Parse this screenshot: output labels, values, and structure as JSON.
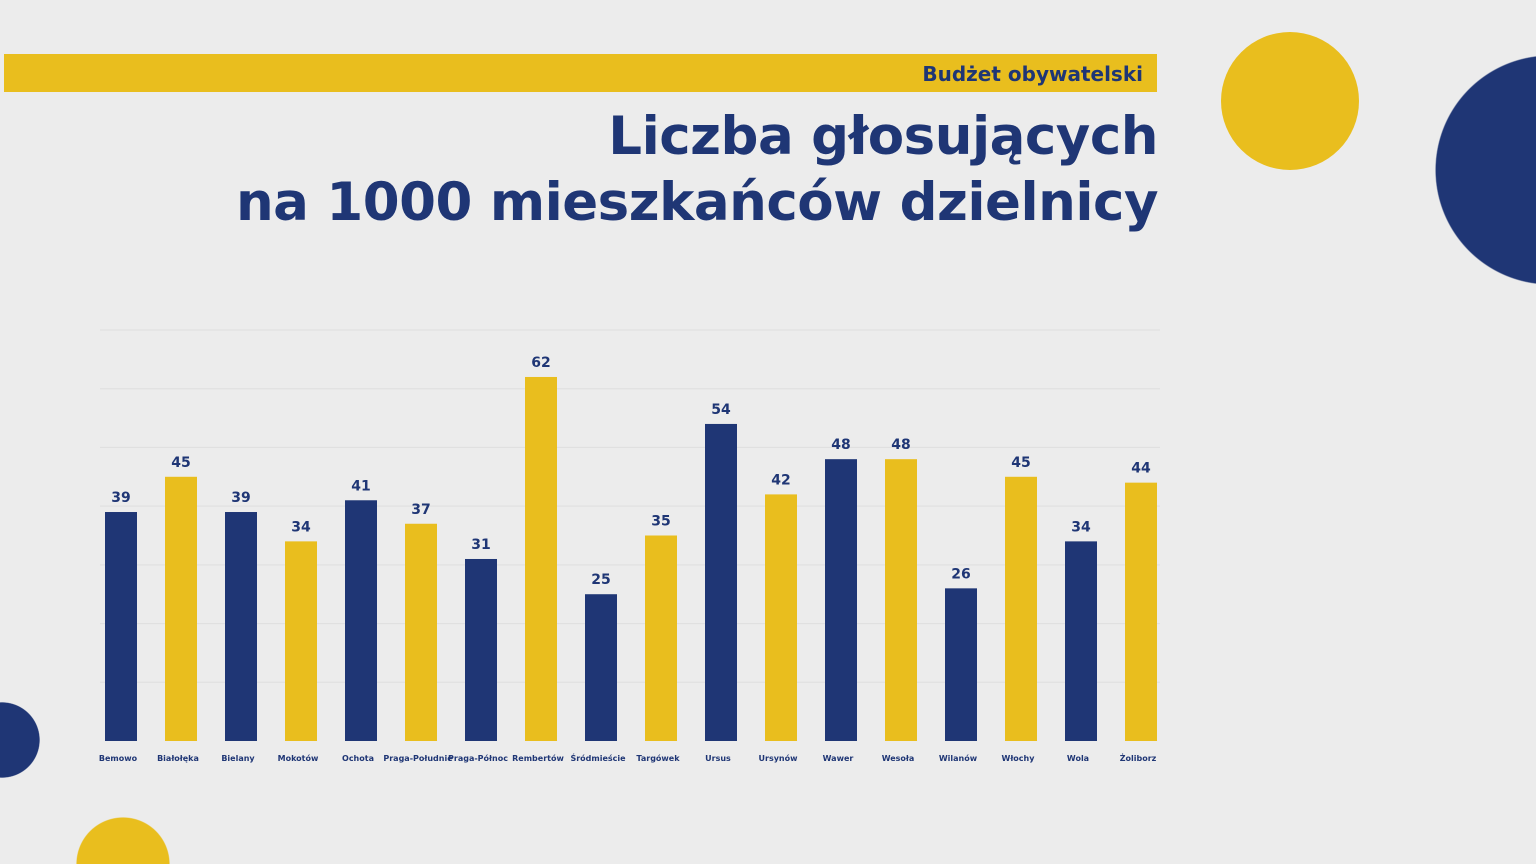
{
  "header": {
    "tag": "Budżet obywatelski",
    "title_line1": "Liczba głosujących",
    "title_line2": "na 1000 mieszkańców dzielnicy"
  },
  "colors": {
    "navy": "#1f3675",
    "yellow": "#e9be1e",
    "background": "#ececec"
  },
  "chart_data": {
    "type": "bar",
    "categories": [
      "Bemowo",
      "Białołęka",
      "Bielany",
      "Mokotów",
      "Ochota",
      "Praga-Południe",
      "Praga-Północ",
      "Rembertów",
      "Śródmieście",
      "Targówek",
      "Ursus",
      "Ursynów",
      "Wawer",
      "Wesoła",
      "Wilanów",
      "Włochy",
      "Wola",
      "Żoliborz"
    ],
    "values": [
      39,
      45,
      39,
      34,
      41,
      37,
      31,
      62,
      25,
      35,
      54,
      42,
      48,
      48,
      26,
      45,
      34,
      44
    ],
    "bar_colors": [
      "navy",
      "yellow",
      "navy",
      "yellow",
      "navy",
      "yellow",
      "navy",
      "yellow",
      "navy",
      "yellow",
      "navy",
      "yellow",
      "navy",
      "yellow",
      "navy",
      "yellow",
      "navy",
      "yellow"
    ],
    "ylim": [
      0,
      70
    ],
    "grid": true,
    "data_labels": true
  }
}
